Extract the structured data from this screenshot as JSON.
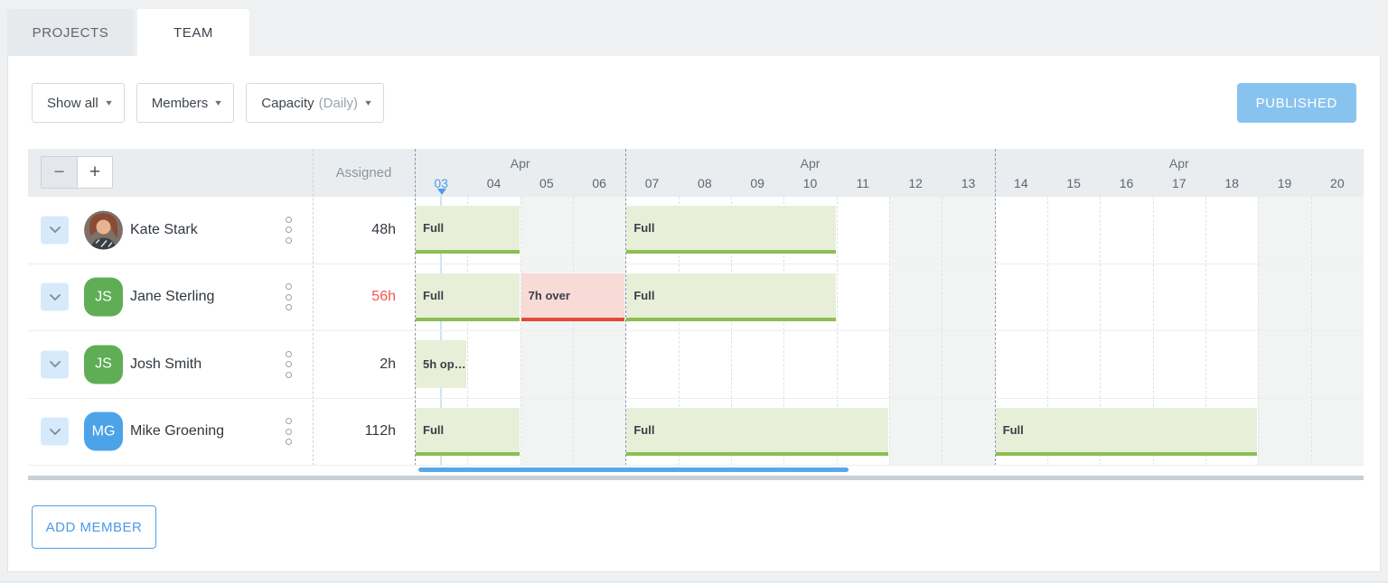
{
  "tabs": [
    {
      "label": "PROJECTS",
      "active": false
    },
    {
      "label": "TEAM",
      "active": true
    }
  ],
  "toolbar": {
    "filters": [
      {
        "label": "Show all",
        "suffix": ""
      },
      {
        "label": "Members",
        "suffix": ""
      },
      {
        "label": "Capacity",
        "suffix": "(Daily)"
      }
    ],
    "caret": "▼",
    "publish_label": "PUBLISHED"
  },
  "schedule": {
    "zoom_out_label": "−",
    "zoom_in_label": "+",
    "assigned_header": "Assigned",
    "month_groups": [
      {
        "label": "Apr",
        "start": 0,
        "end": 3
      },
      {
        "label": "Apr",
        "start": 4,
        "end": 10
      },
      {
        "label": "Apr",
        "start": 11,
        "end": 17
      }
    ],
    "days": [
      {
        "label": "03",
        "today": true,
        "weekend": false
      },
      {
        "label": "04",
        "today": false,
        "weekend": false
      },
      {
        "label": "05",
        "today": false,
        "weekend": true
      },
      {
        "label": "06",
        "today": false,
        "weekend": true
      },
      {
        "label": "07",
        "today": false,
        "weekend": false
      },
      {
        "label": "08",
        "today": false,
        "weekend": false
      },
      {
        "label": "09",
        "today": false,
        "weekend": false
      },
      {
        "label": "10",
        "today": false,
        "weekend": false
      },
      {
        "label": "11",
        "today": false,
        "weekend": false
      },
      {
        "label": "12",
        "today": false,
        "weekend": true
      },
      {
        "label": "13",
        "today": false,
        "weekend": true
      },
      {
        "label": "14",
        "today": false,
        "weekend": false
      },
      {
        "label": "15",
        "today": false,
        "weekend": false
      },
      {
        "label": "16",
        "today": false,
        "weekend": false
      },
      {
        "label": "17",
        "today": false,
        "weekend": false
      },
      {
        "label": "18",
        "today": false,
        "weekend": false
      },
      {
        "label": "19",
        "today": false,
        "weekend": true
      },
      {
        "label": "20",
        "today": false,
        "weekend": true
      }
    ],
    "week_breaks": [
      0,
      4,
      11
    ],
    "members": [
      {
        "name": "Kate Stark",
        "assigned": "48h",
        "assigned_over": false,
        "avatar": {
          "type": "photo",
          "initials": ""
        },
        "bars": [
          {
            "label": "Full",
            "start": 0,
            "span": 2,
            "type": "full"
          },
          {
            "label": "Full",
            "start": 4,
            "span": 4,
            "type": "full"
          }
        ]
      },
      {
        "name": "Jane Sterling",
        "assigned": "56h",
        "assigned_over": true,
        "avatar": {
          "type": "initials",
          "initials": "JS",
          "color": "green"
        },
        "bars": [
          {
            "label": "Full",
            "start": 0,
            "span": 2,
            "type": "full"
          },
          {
            "label": "7h over",
            "start": 2,
            "span": 2,
            "type": "over"
          },
          {
            "label": "Full",
            "start": 4,
            "span": 4,
            "type": "full"
          }
        ]
      },
      {
        "name": "Josh Smith",
        "assigned": "2h",
        "assigned_over": false,
        "avatar": {
          "type": "initials",
          "initials": "JS",
          "color": "green"
        },
        "bars": [
          {
            "label": "5h op…",
            "start": 0,
            "span": 1,
            "type": "open"
          }
        ]
      },
      {
        "name": "Mike Groening",
        "assigned": "112h",
        "assigned_over": false,
        "avatar": {
          "type": "initials",
          "initials": "MG",
          "color": "blue"
        },
        "bars": [
          {
            "label": "Full",
            "start": 0,
            "span": 2,
            "type": "full"
          },
          {
            "label": "Full",
            "start": 4,
            "span": 5,
            "type": "full"
          },
          {
            "label": "Full",
            "start": 11,
            "span": 5,
            "type": "full"
          }
        ]
      }
    ]
  },
  "add_member_label": "ADD MEMBER",
  "colors": {
    "accent_blue": "#4a9fe8",
    "publish_blue": "#88c3ef",
    "full_green_bg": "#e7efd9",
    "full_green_line": "#8cbe52",
    "over_red_bg": "#f8dad6",
    "over_red_line": "#e24a3e",
    "over_text_red": "#f4584c",
    "avatar_green": "#5fae55",
    "avatar_blue": "#4da3e8"
  }
}
